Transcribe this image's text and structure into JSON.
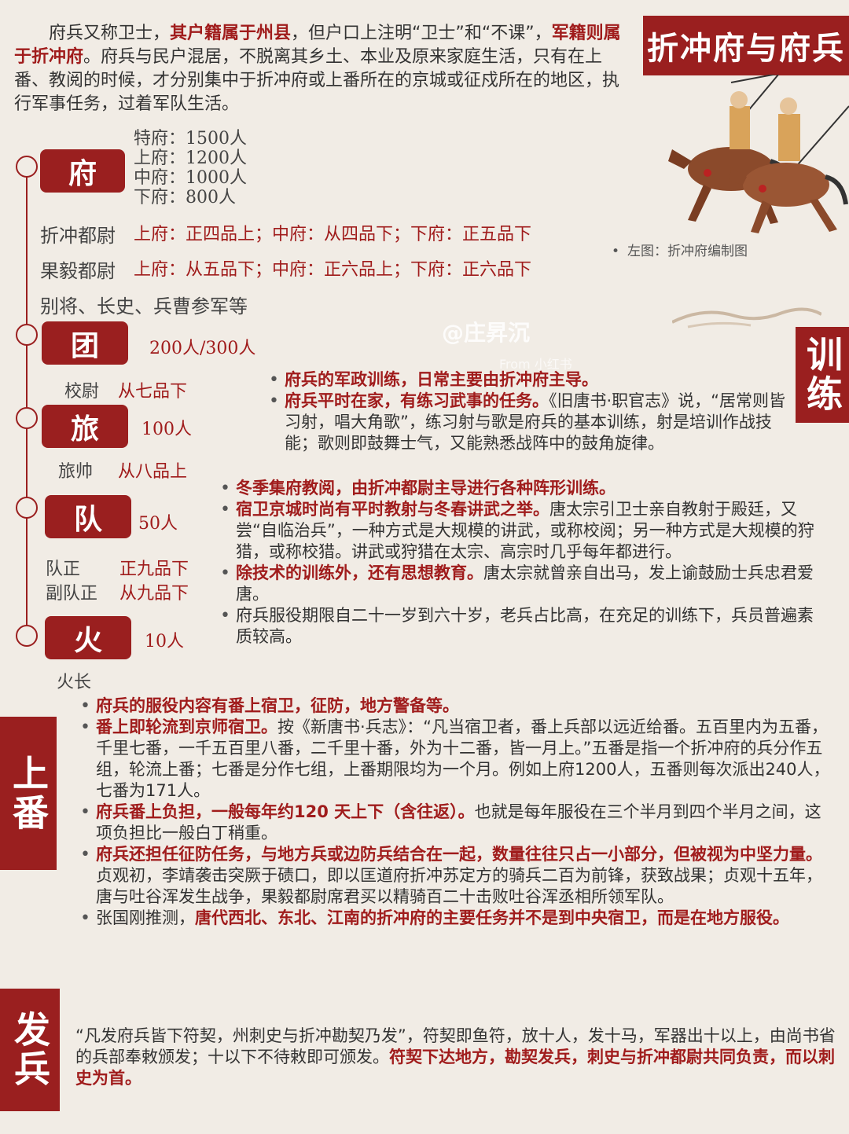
{
  "title": "折冲府与府兵",
  "intro": {
    "p1": "府兵又称卫士，",
    "r1": "其户籍属于州县",
    "p2": "，但户口上注明“卫士”和“不课”，",
    "r2": "军籍则属于折冲府",
    "p3": "。府兵与民户混居，不脱离其乡土、本业及原来家庭生活，只有在上番、教阅的时候，才分别集中于折冲府或上番所在的京城或征戍所在的地区，执行军事任务，过着军队生活。"
  },
  "fu": {
    "label": "府",
    "sizes": [
      "特府：1500人",
      "上府：1200人",
      "中府：1000人",
      "下府：800人"
    ],
    "zc_title": "折冲都尉",
    "zc_ranks": "上府：正四品上；中府：从四品下；下府：正五品下",
    "gy_title": "果毅都尉",
    "gy_ranks": "上府：从五品下；中府：正六品上；下府：正六品下",
    "others": "别将、长史、兵曹参军等"
  },
  "tuan": {
    "label": "团",
    "size": "200人/300人",
    "officer": "校尉",
    "rank": "从七品下"
  },
  "lv": {
    "label": "旅",
    "size": "100人",
    "officer": "旅帅",
    "rank": "从八品上"
  },
  "dui": {
    "label": "队",
    "size": "50人",
    "officer1": "队正",
    "rank1": "正九品下",
    "officer2": "副队正",
    "rank2": "从九品下"
  },
  "huo": {
    "label": "火",
    "size": "10人",
    "officer": "火长"
  },
  "caption": "左图：折冲府编制图",
  "watermark": "@庄昇沉",
  "watermark_sub": "From 小红书",
  "training": {
    "tab": "训练",
    "b1": "府兵的军政训练，日常主要由折冲府主导。",
    "b2_red": "府兵平时在家，有练习武事的任务。",
    "b2": "《旧唐书·职官志》说，“居常则皆习射，唱大角歌”，练习射与歌是府兵的基本训练，射是培训作战技能；歌则即鼓舞士气，又能熟悉战阵中的鼓角旋律。",
    "b3": "冬季集府教阅，由折冲都尉主导进行各种阵形训练。",
    "b4_red": "宿卫京城时尚有平时教射与冬春讲武之举。",
    "b4": "唐太宗引卫士亲自教射于殿廷，又尝“自临治兵”，一种方式是大规模的讲武，或称校阅；另一种方式是大规模的狩猎，或称校猎。讲武或狩猎在太宗、高宗时几乎每年都进行。",
    "b5_red": "除技术的训练外，还有思想教育。",
    "b5": "唐太宗就曾亲自出马，发上谕鼓励士兵忠君爱唐。",
    "b6": "府兵服役期限自二十一岁到六十岁，老兵占比高，在充足的训练下，兵员普遍素质较高。"
  },
  "shangfan": {
    "tab": "上番",
    "b1": "府兵的服役内容有番上宿卫，征防，地方警备等。",
    "b2_red": "番上即轮流到京师宿卫。",
    "b2": "按《新唐书·兵志》：“凡当宿卫者，番上兵部以远近给番。五百里内为五番，千里七番，一千五百里八番，二千里十番，外为十二番，皆一月上。”五番是指一个折冲府的兵分作五组，轮流上番；七番是分作七组，上番期限均为一个月。例如上府1200人，五番则每次派出240人，七番为171人。",
    "b3_red": "府兵番上负担，一般每年约120 天上下（含往返）。",
    "b3": "也就是每年服役在三个半月到四个半月之间，这项负担比一般白丁稍重。",
    "b4_red": "府兵还担任征防任务，与地方兵或边防兵结合在一起，数量往往只占一小部分，但被视为中坚力量。",
    "b4": "贞观初，李靖袭击突厥于碛口，即以匡道府折冲苏定方的骑兵二百为前锋，获致战果；贞观十五年，唐与吐谷浑发生战争，果毅都尉席君买以精骑百二十击败吐谷浑丞相所领军队。",
    "b5": "张国刚推测，",
    "b5_red": "唐代西北、东北、江南的折冲府的主要任务并不是到中央宿卫，而是在地方服役。"
  },
  "fabing": {
    "tab": "发兵",
    "p1": "“凡发府兵皆下符契，州刺史与折冲勘契乃发”，符契即鱼符，放十人，发十马，军器出十以上，由尚书省的兵部奉敕颁发；十以下不待敕即可颁发。",
    "p_red": "符契下达地方，勘契发兵，刺史与折冲都尉共同负责，而以刺史为首。"
  }
}
